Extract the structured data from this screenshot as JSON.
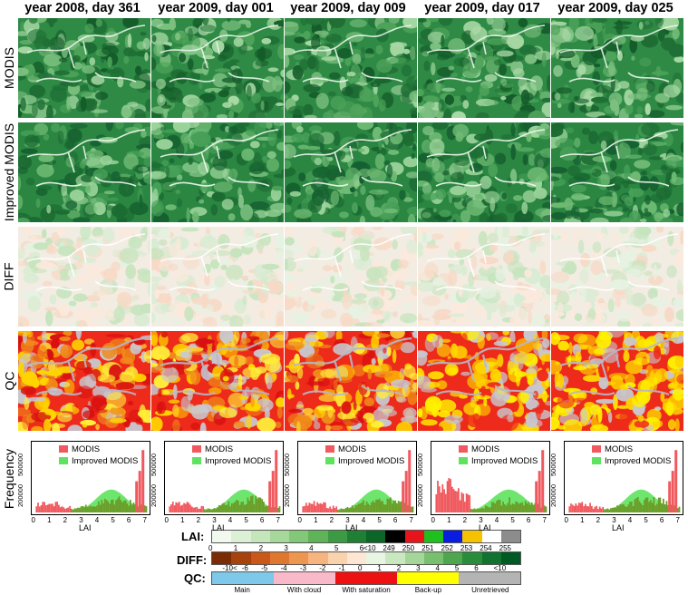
{
  "columns": [
    "year 2008, day 361",
    "year 2009, day 001",
    "year 2009, day 009",
    "year 2009, day 017",
    "year 2009, day 025"
  ],
  "rows": [
    "MODIS",
    "Improved MODIS",
    "DIFF",
    "QC",
    "Frequency"
  ],
  "histogram": {
    "legend": [
      "MODIS",
      "Improved MODIS"
    ],
    "xlabel": "LAI",
    "xticks": [
      "0",
      "1",
      "2",
      "3",
      "4",
      "5",
      "6",
      "7"
    ],
    "yticks": [
      "200000",
      "500000"
    ],
    "colors": {
      "modis": "#f0595e",
      "improved": "#5ee35e",
      "overlap": "#6b9e2a"
    }
  },
  "colorbars": {
    "lai": {
      "label": "LAI:",
      "colors": [
        "#f2faf0",
        "#dbf0d5",
        "#c4e6ba",
        "#a5d89a",
        "#83c878",
        "#5fb45a",
        "#3d9a44",
        "#1f7f34",
        "#0b6627",
        "#000000",
        "#e8141b",
        "#1fbf1f",
        "#0a1ce0",
        "#f6c200",
        "#ffffff",
        "#8c8c8c"
      ],
      "ticks": [
        "0",
        "1",
        "2",
        "3",
        "4",
        "5",
        "6",
        "<10",
        "249",
        "250",
        "251",
        "252",
        "253",
        "254",
        "255"
      ]
    },
    "diff": {
      "label": "DIFF:",
      "colors": [
        "#7a2d05",
        "#a6430d",
        "#c9581a",
        "#e0772f",
        "#ee9650",
        "#f6b47f",
        "#fad2ad",
        "#fde7d4",
        "#e8f5e3",
        "#c9e8c0",
        "#a3d698",
        "#78c070",
        "#4ea64e",
        "#2b8c3c",
        "#127230",
        "#005a24"
      ],
      "ticks": [
        "-10<",
        "-6",
        "-5",
        "-4",
        "-3",
        "-2",
        "-1",
        "0",
        "1",
        "2",
        "3",
        "4",
        "5",
        "6",
        "<10"
      ]
    },
    "qc": {
      "label": "QC:",
      "segments": [
        {
          "label": "Main",
          "color": "#7ec8ea"
        },
        {
          "label": "With cloud",
          "color": "#f9b9c8"
        },
        {
          "label": "With saturation",
          "color": "#ee1111"
        },
        {
          "label": "Back-up",
          "color": "#ffff00"
        },
        {
          "label": "Unretrieved",
          "color": "#b4b4b4"
        }
      ]
    }
  }
}
